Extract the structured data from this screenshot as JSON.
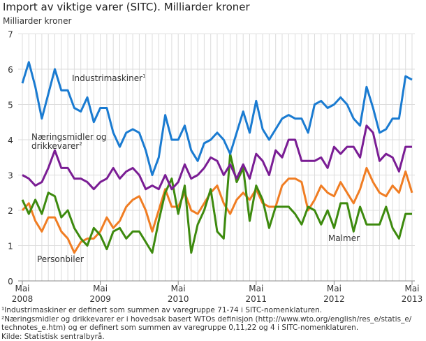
{
  "chart_data": {
    "type": "line",
    "title": "Import av viktige varer (SITC). Milliarder kroner",
    "ylabel": "Milliarder kroner",
    "xlabel": "",
    "ylim": [
      0,
      7
    ],
    "yticks": [
      "0",
      "1",
      "2",
      "3",
      "4",
      "5",
      "6",
      "7"
    ],
    "grid": true,
    "x_start": "Mai 2008",
    "x_end": "Mai 2013",
    "xticks": [
      {
        "index": 0,
        "month": "Mai",
        "year": "2008"
      },
      {
        "index": 12,
        "month": "Mai",
        "year": "2009"
      },
      {
        "index": 24,
        "month": "Mai",
        "year": "2010"
      },
      {
        "index": 36,
        "month": "Mai",
        "year": "2011"
      },
      {
        "index": 48,
        "month": "Mai",
        "year": "2012"
      },
      {
        "index": 60,
        "month": "Mai",
        "year": "2013"
      }
    ],
    "series": [
      {
        "name": "Industrimaskiner",
        "sup": "1",
        "color": "#1a7bd1",
        "values": [
          5.6,
          6.2,
          5.5,
          4.6,
          5.3,
          6.0,
          5.4,
          5.4,
          4.9,
          4.8,
          5.2,
          4.5,
          4.9,
          4.9,
          4.2,
          3.8,
          4.2,
          4.3,
          4.2,
          3.7,
          3.0,
          3.5,
          4.7,
          4.0,
          4.0,
          4.4,
          3.7,
          3.4,
          3.9,
          4.0,
          4.2,
          4.0,
          3.6,
          4.2,
          4.8,
          4.2,
          5.1,
          4.3,
          4.0,
          4.3,
          4.6,
          4.7,
          4.6,
          4.6,
          4.2,
          5.0,
          5.1,
          4.9,
          5.0,
          5.2,
          5.0,
          4.6,
          4.4,
          5.5,
          4.9,
          4.2,
          4.3,
          4.6,
          4.6,
          5.8,
          5.7
        ]
      },
      {
        "name": "Næringsmidler og drikkevarer",
        "label_lines": [
          "Næringsmidler og",
          "drikkevarer"
        ],
        "sup": "2",
        "color": "#7a1d94",
        "values": [
          3.0,
          2.9,
          2.7,
          2.8,
          3.2,
          3.7,
          3.2,
          3.2,
          2.9,
          2.9,
          2.8,
          2.6,
          2.8,
          2.9,
          3.2,
          2.9,
          3.1,
          3.2,
          3.0,
          2.6,
          2.7,
          2.6,
          3.0,
          2.6,
          2.8,
          3.3,
          2.9,
          3.0,
          3.2,
          3.5,
          3.4,
          3.0,
          3.3,
          2.9,
          3.3,
          2.9,
          3.6,
          3.4,
          3.0,
          3.7,
          3.5,
          4.0,
          4.0,
          3.4,
          3.4,
          3.4,
          3.5,
          3.2,
          3.8,
          3.6,
          3.8,
          3.8,
          3.5,
          4.4,
          4.2,
          3.4,
          3.6,
          3.5,
          3.1,
          3.8,
          3.8
        ]
      },
      {
        "name": "Personbiler",
        "color": "#f07d23",
        "values": [
          2.0,
          2.2,
          1.7,
          1.4,
          1.8,
          1.8,
          1.4,
          1.2,
          0.8,
          1.1,
          1.2,
          1.2,
          1.4,
          1.8,
          1.5,
          1.7,
          2.1,
          2.3,
          2.4,
          2.0,
          1.4,
          2.0,
          2.6,
          2.1,
          2.1,
          2.5,
          2.0,
          1.9,
          2.2,
          2.5,
          2.7,
          2.2,
          1.9,
          2.3,
          2.5,
          2.3,
          2.6,
          2.2,
          2.1,
          2.1,
          2.7,
          2.9,
          2.9,
          2.8,
          2.0,
          2.3,
          2.7,
          2.5,
          2.4,
          2.8,
          2.5,
          2.2,
          2.6,
          3.2,
          2.8,
          2.5,
          2.4,
          2.7,
          2.5,
          3.1,
          2.5
        ]
      },
      {
        "name": "Malmer",
        "color": "#3d8a0e",
        "values": [
          2.3,
          1.9,
          2.3,
          1.9,
          2.5,
          2.4,
          1.8,
          2.0,
          1.5,
          1.2,
          1.0,
          1.5,
          1.3,
          0.9,
          1.4,
          1.5,
          1.2,
          1.4,
          1.4,
          1.1,
          0.8,
          1.7,
          2.5,
          2.9,
          1.9,
          2.7,
          0.8,
          1.6,
          2.0,
          2.6,
          1.4,
          1.2,
          3.6,
          2.8,
          3.2,
          1.7,
          2.7,
          2.3,
          1.5,
          2.1,
          2.1,
          2.1,
          1.9,
          1.6,
          2.1,
          2.0,
          1.6,
          2.0,
          1.5,
          2.2,
          2.2,
          1.4,
          2.1,
          1.6,
          1.6,
          1.6,
          2.1,
          1.5,
          1.2,
          1.9,
          1.9
        ]
      }
    ]
  },
  "footnotes": [
    "¹Industrimaskiner er definert som summen av varegruppe 71-74 i SITC-nomenklaturen.",
    "²Næringsmidler og drikkevarer  er i hovedsak basert WTOs definisjon (http://www.wto.org/english/res_e/statis_e/",
    "technotes_e.htm) og er definert som summen av varegruppe 0,11,22 og 4 i SITC-nomenklaturen.",
    "Kilde: Statistisk sentralbyrå."
  ]
}
